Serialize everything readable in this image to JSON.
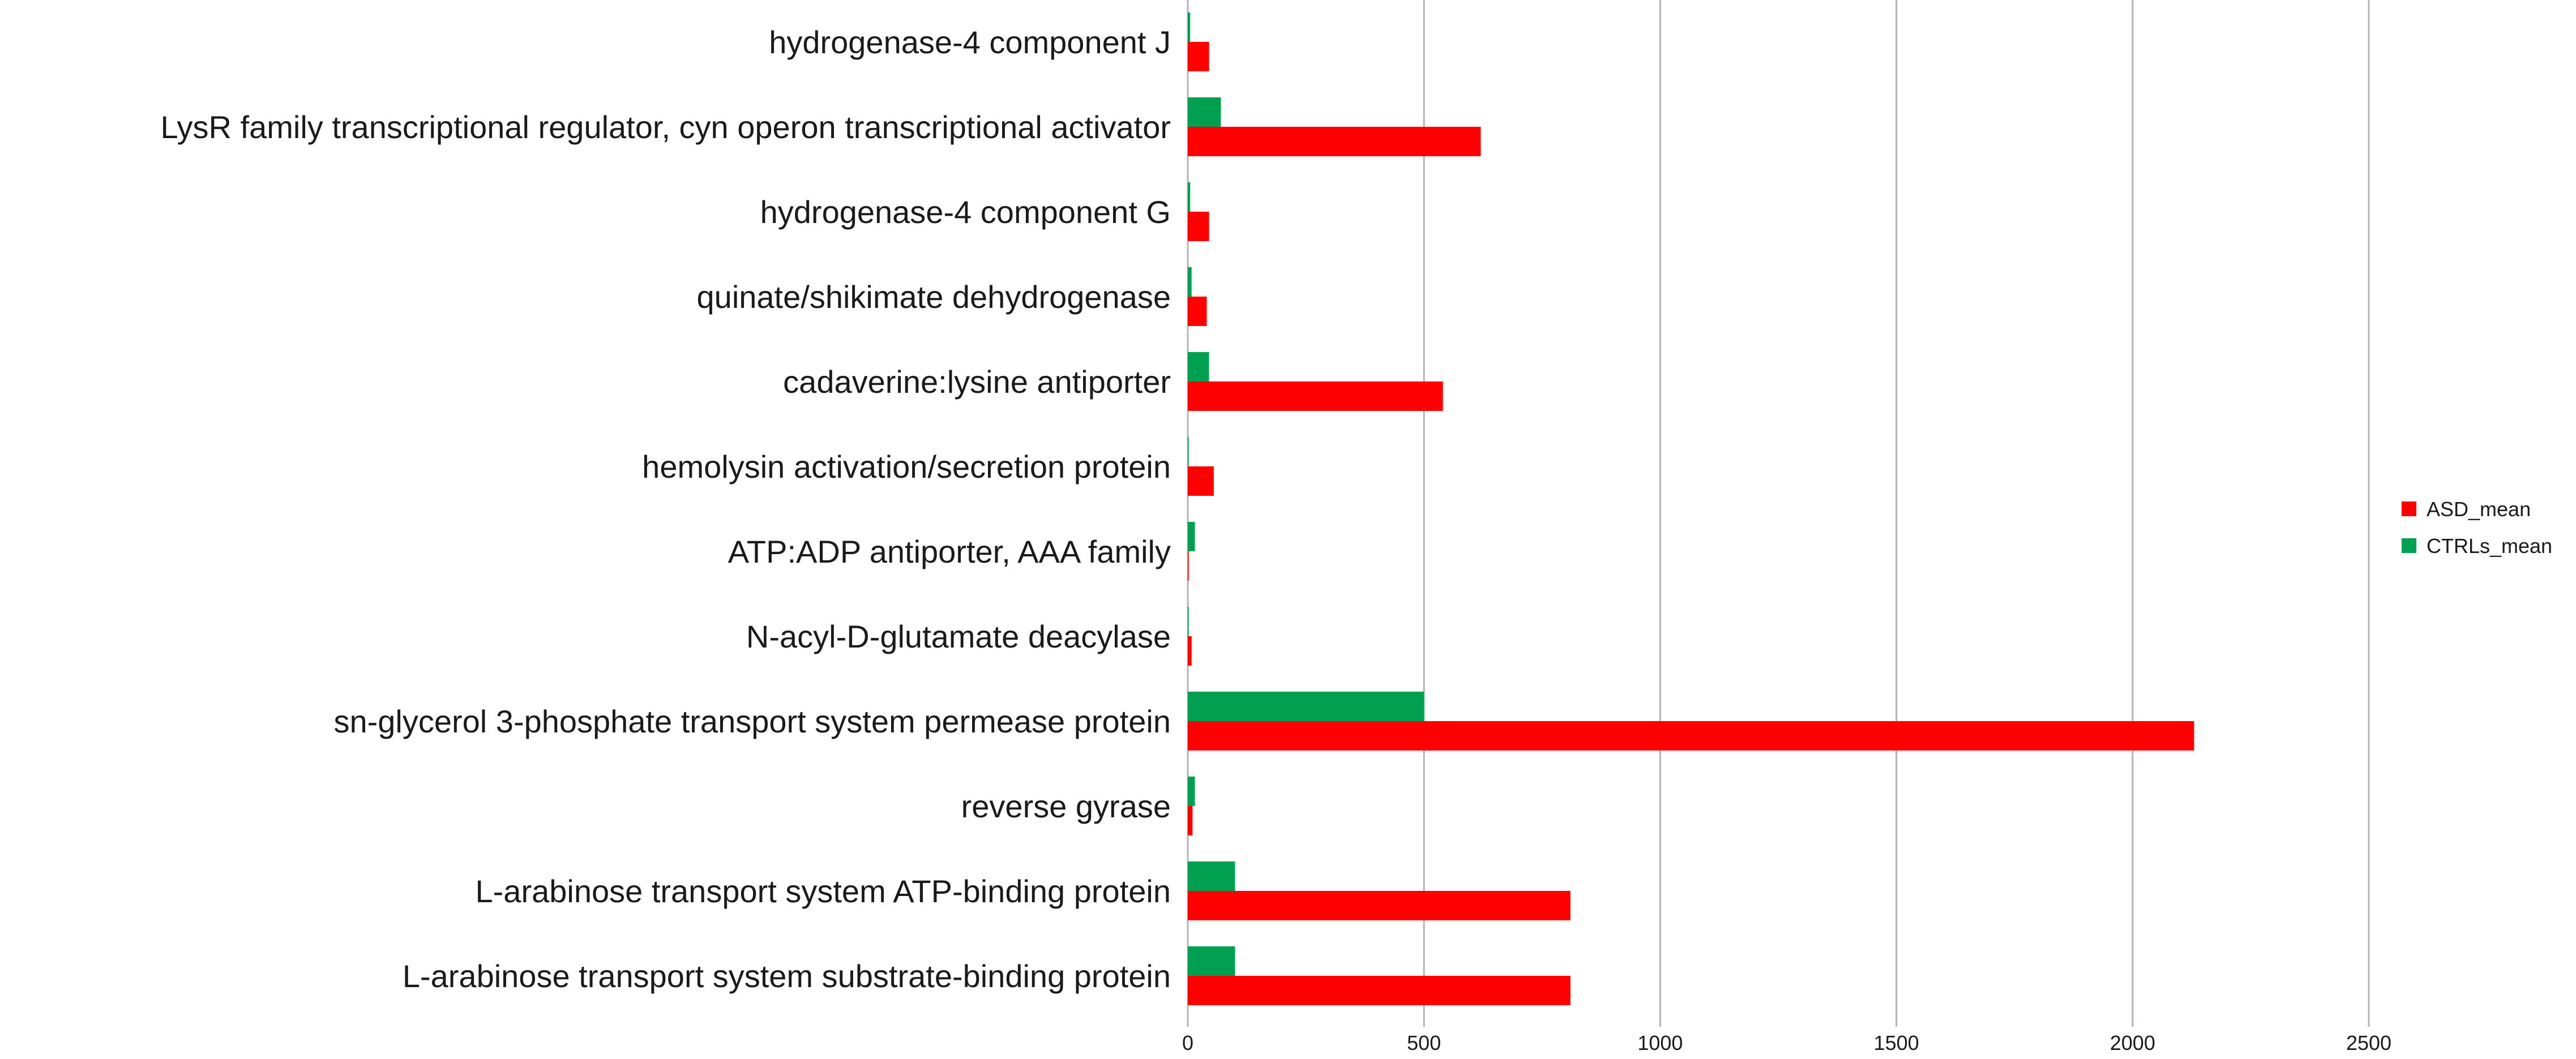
{
  "chart_data": {
    "type": "bar",
    "orientation": "horizontal",
    "categories": [
      "hydrogenase-4 component J",
      "LysR family transcriptional regulator, cyn operon transcriptional activator",
      "hydrogenase-4 component G",
      "quinate/shikimate dehydrogenase",
      "cadaverine:lysine antiporter",
      "hemolysin activation/secretion protein",
      "ATP:ADP antiporter, AAA family",
      "N-acyl-D-glutamate deacylase",
      "sn-glycerol 3-phosphate transport system permease protein",
      "reverse gyrase",
      "L-arabinose transport system ATP-binding protein",
      "L-arabinose transport system substrate-binding protein"
    ],
    "series": [
      {
        "name": "ASD_mean",
        "color": "#ff0000",
        "values": [
          45,
          620,
          45,
          40,
          540,
          55,
          2,
          8,
          2130,
          10,
          810,
          810
        ]
      },
      {
        "name": "CTRLs_mean",
        "color": "#00a050",
        "values": [
          5,
          70,
          5,
          8,
          45,
          2,
          15,
          2,
          500,
          15,
          100,
          100
        ]
      }
    ],
    "xlim": [
      0,
      2500
    ],
    "xticks": [
      0,
      500,
      1000,
      1500,
      2000,
      2500
    ],
    "grid": true,
    "legend_position": "right"
  }
}
